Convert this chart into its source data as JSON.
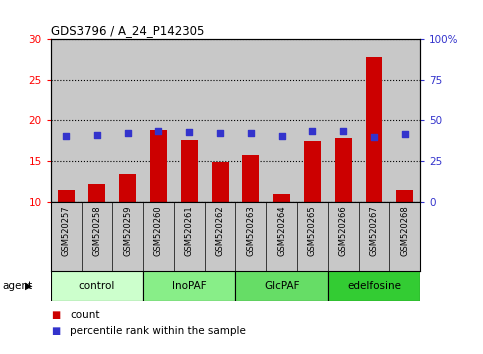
{
  "title": "GDS3796 / A_24_P142305",
  "samples": [
    "GSM520257",
    "GSM520258",
    "GSM520259",
    "GSM520260",
    "GSM520261",
    "GSM520262",
    "GSM520263",
    "GSM520264",
    "GSM520265",
    "GSM520266",
    "GSM520267",
    "GSM520268"
  ],
  "counts": [
    11.5,
    12.2,
    13.4,
    18.8,
    17.6,
    14.9,
    15.8,
    11.0,
    17.5,
    17.8,
    27.8,
    11.4
  ],
  "percentiles": [
    40.5,
    41.0,
    42.0,
    43.5,
    43.0,
    42.5,
    42.0,
    40.5,
    43.5,
    43.5,
    40.0,
    41.5
  ],
  "bar_color": "#cc0000",
  "dot_color": "#3333cc",
  "groups": [
    {
      "label": "control",
      "start": 0,
      "end": 3,
      "color": "#ccffcc"
    },
    {
      "label": "InoPAF",
      "start": 3,
      "end": 6,
      "color": "#88ee88"
    },
    {
      "label": "GlcPAF",
      "start": 6,
      "end": 9,
      "color": "#66dd66"
    },
    {
      "label": "edelfosine",
      "start": 9,
      "end": 12,
      "color": "#33cc33"
    }
  ],
  "ylim_left": [
    10,
    30
  ],
  "ylim_right": [
    0,
    100
  ],
  "yticks_left": [
    10,
    15,
    20,
    25,
    30
  ],
  "yticks_right": [
    0,
    25,
    50,
    75,
    100
  ],
  "ytick_labels_right": [
    "0",
    "25",
    "50",
    "75",
    "100%"
  ],
  "bar_bottom": 10,
  "cell_bg": "#c8c8c8",
  "plot_bg": "#c8c8c8"
}
